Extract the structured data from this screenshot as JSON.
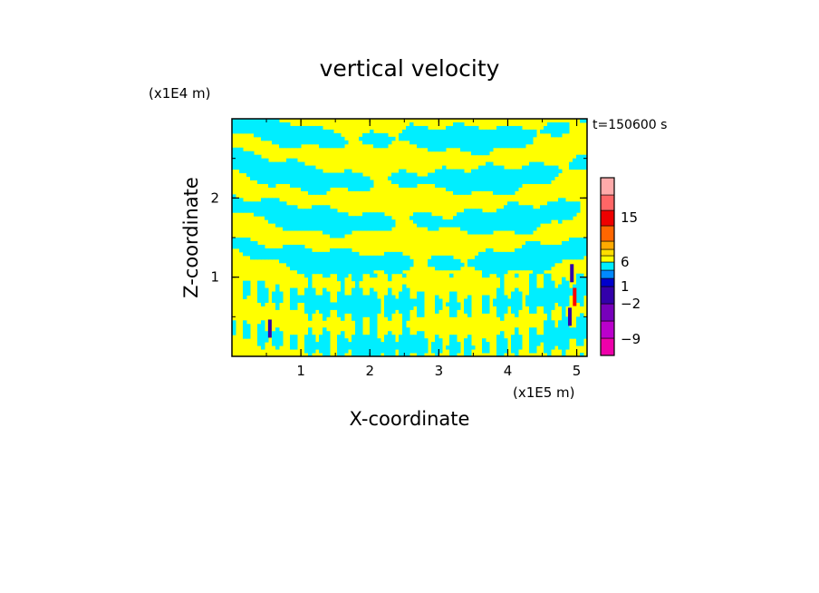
{
  "chart_data": {
    "type": "heatmap",
    "title": "vertical velocity",
    "xlabel": "X-coordinate",
    "ylabel": "Z-coordinate",
    "x_unit": "(x1E5 m)",
    "y_unit": "(x1E4 m)",
    "time_label": "t=150600 s",
    "xlim": [
      0,
      5.15
    ],
    "ylim": [
      0,
      3.0
    ],
    "x_ticks": [
      1,
      2,
      3,
      4,
      5
    ],
    "x_tick_labels": [
      "1",
      "2",
      "3",
      "4",
      "5"
    ],
    "y_ticks": [
      1,
      2
    ],
    "y_tick_labels": [
      "1",
      "2"
    ],
    "field_colors": {
      "positive_small": "#ffff00",
      "negative_small": "#00eeff",
      "positive_strong": "#ff0000",
      "negative_strong": "#3300aa"
    },
    "colorbar": {
      "levels": [
        {
          "color": "#ee00aa"
        },
        {
          "color": "#bb00cc"
        },
        {
          "color": "#7700bb"
        },
        {
          "color": "#3300aa"
        },
        {
          "color": "#0000cc"
        },
        {
          "color": "#0088ff"
        },
        {
          "color": "#00eeff"
        },
        {
          "color": "#ffff00"
        },
        {
          "color": "#ffdd00"
        },
        {
          "color": "#ffaa00"
        },
        {
          "color": "#ff6600"
        },
        {
          "color": "#ee0000"
        },
        {
          "color": "#ff6666"
        },
        {
          "color": "#ffaaaa"
        },
        {
          "color": "#ffeeee"
        }
      ],
      "tick_labels": [
        "15",
        "6",
        "1",
        "−2",
        "−9"
      ]
    }
  }
}
